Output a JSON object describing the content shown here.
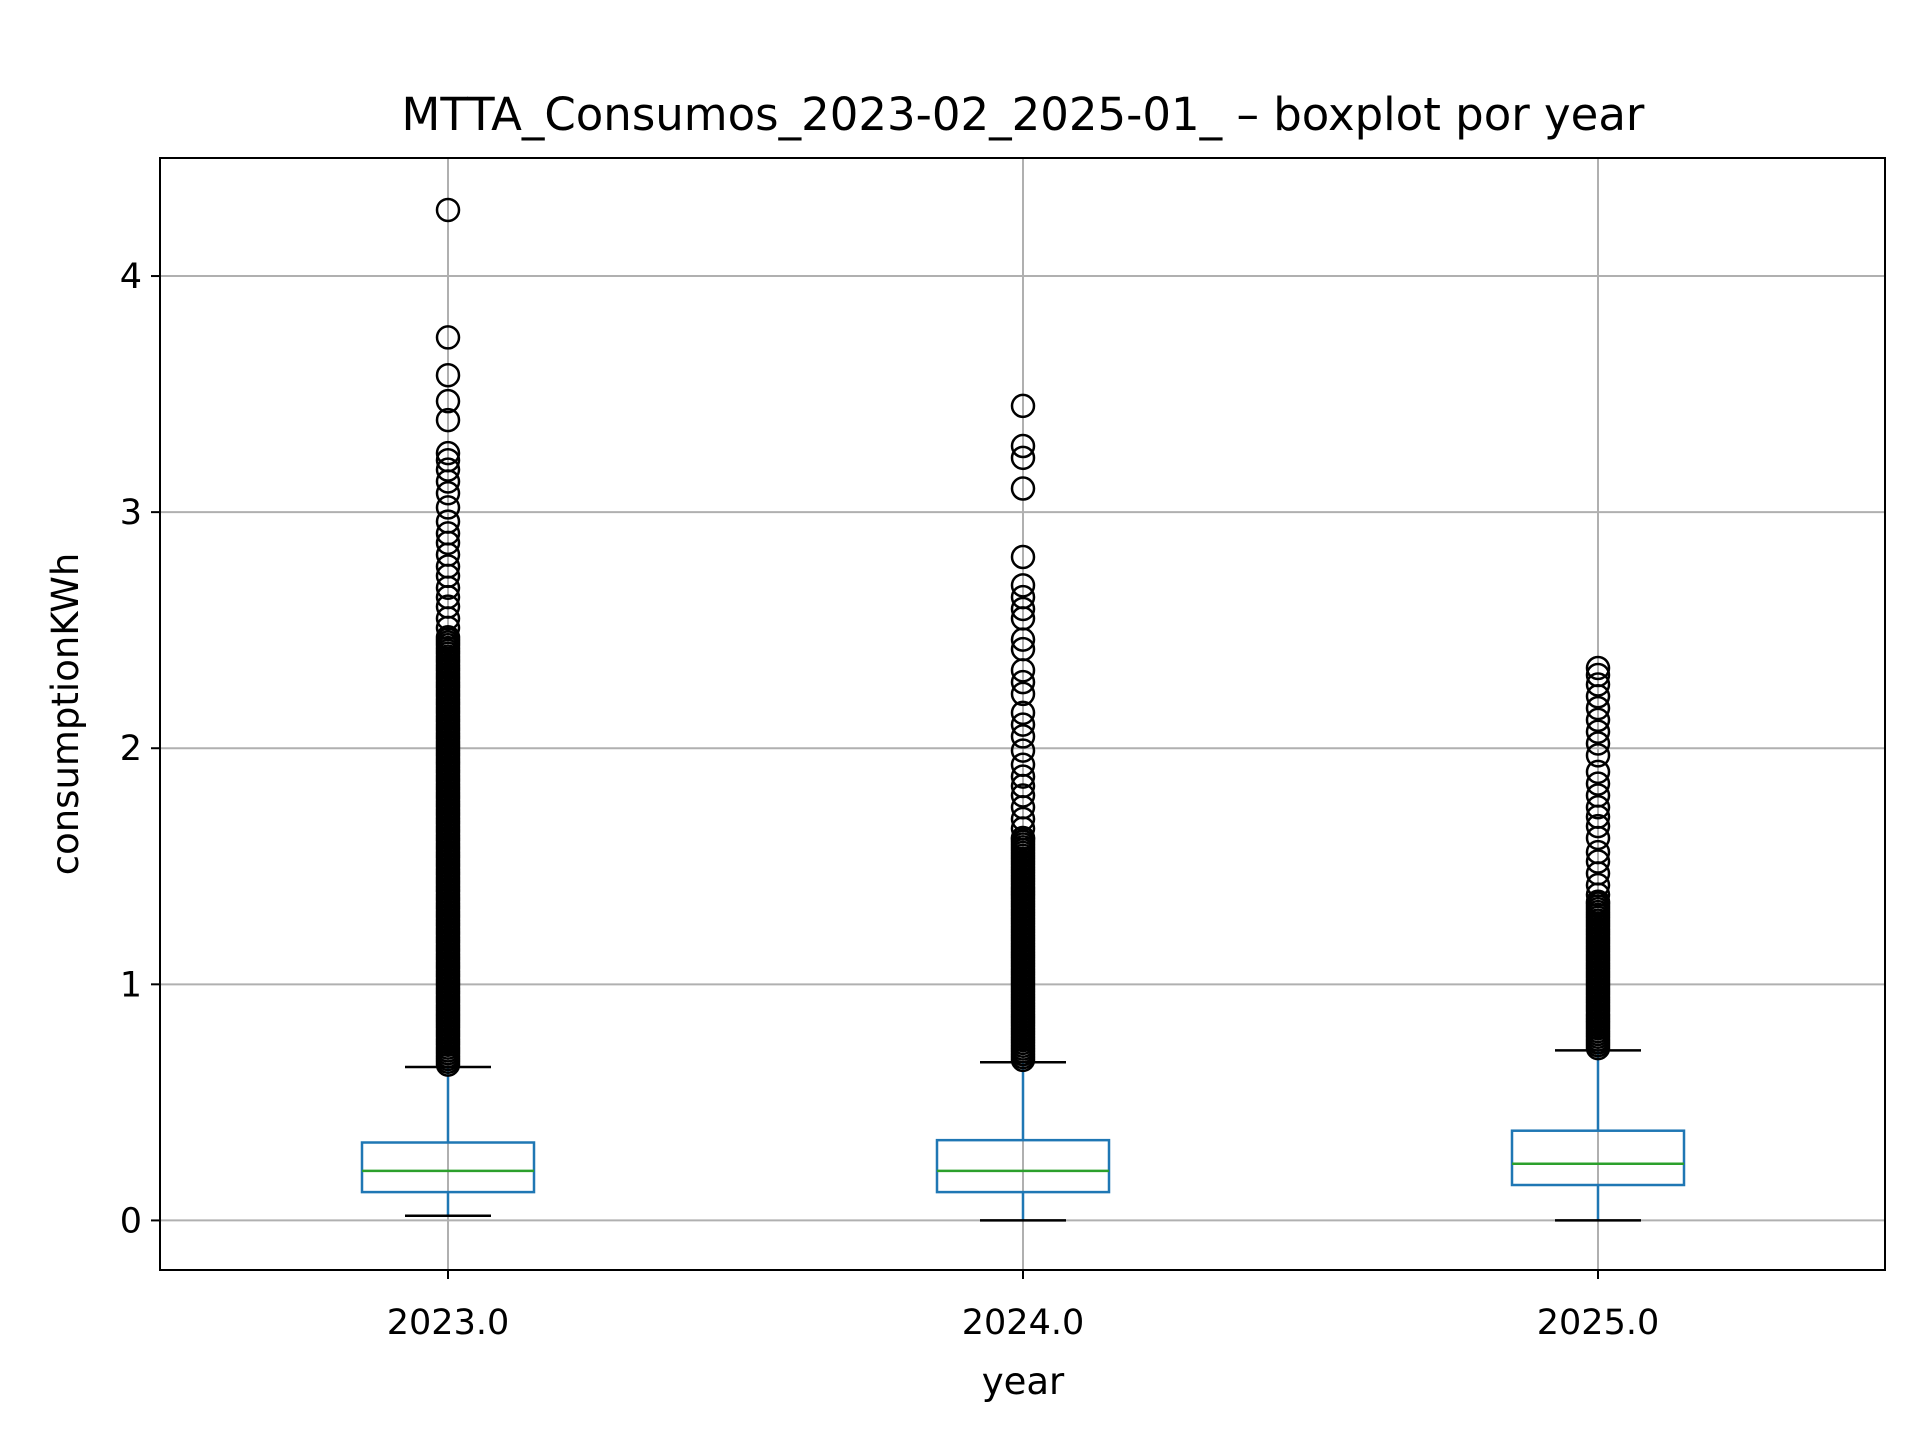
{
  "chart_data": {
    "type": "boxplot",
    "title": "MTTA_Consumos_2023-02_2025-01_ – boxplot por year",
    "xlabel": "year",
    "ylabel": "consumptionKWh",
    "categories": [
      "2023.0",
      "2024.0",
      "2025.0"
    ],
    "yticks": [
      "0",
      "1",
      "2",
      "3",
      "4"
    ],
    "ylim": [
      -0.21,
      4.5
    ],
    "grid": true,
    "colors": {
      "box": "#1f77b4",
      "median": "#2ca02c",
      "whisker": "#1f77b4",
      "cap": "#000000",
      "flier": "#000000",
      "grid": "#b0b0b0"
    },
    "series": [
      {
        "category": "2023.0",
        "whisker_low": 0.02,
        "q1": 0.12,
        "median": 0.21,
        "q3": 0.33,
        "whisker_high": 0.65,
        "outliers": [
          4.28,
          3.74,
          3.58,
          3.47,
          3.39,
          3.25,
          3.22,
          3.18,
          3.13,
          3.08,
          3.02,
          2.96,
          2.91,
          2.87,
          2.82,
          2.77,
          2.73,
          2.68,
          2.64,
          2.6,
          2.55,
          2.51,
          2.47
        ]
      },
      {
        "category": "2024.0",
        "whisker_low": 0.0,
        "q1": 0.12,
        "median": 0.21,
        "q3": 0.34,
        "whisker_high": 0.67,
        "outliers": [
          3.45,
          3.28,
          3.23,
          3.1,
          2.81,
          2.69,
          2.64,
          2.59,
          2.55,
          2.46,
          2.42,
          2.33,
          2.28,
          2.23,
          2.15,
          2.1,
          2.05,
          1.99,
          1.93,
          1.88,
          1.84,
          1.8,
          1.75,
          1.7,
          1.66,
          1.62
        ]
      },
      {
        "category": "2025.0",
        "whisker_low": 0.0,
        "q1": 0.15,
        "median": 0.24,
        "q3": 0.38,
        "whisker_high": 0.72,
        "outliers": [
          2.34,
          2.31,
          2.27,
          2.22,
          2.17,
          2.12,
          2.07,
          2.02,
          1.97,
          1.9,
          1.85,
          1.8,
          1.75,
          1.71,
          1.67,
          1.62,
          1.56,
          1.52,
          1.47,
          1.42,
          1.38,
          1.35
        ]
      }
    ]
  }
}
